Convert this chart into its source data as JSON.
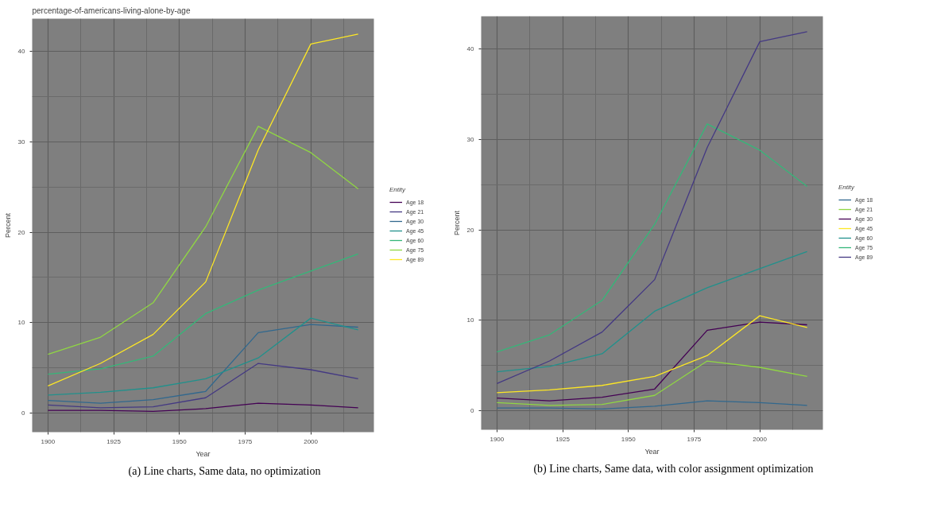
{
  "chart_data": [
    {
      "type": "line",
      "title": "percentage-of-americans-living-alone-by-age",
      "xlabel": "Year",
      "ylabel": "Percent",
      "legend_title": "Entity",
      "legend": "right",
      "grid": true,
      "annotations": [
        "(a) Line charts, Same data, no optimization"
      ],
      "x": [
        1900,
        1920,
        1940,
        1960,
        1980,
        2000,
        2018
      ],
      "xlim": [
        1894,
        2024
      ],
      "xticks": [
        1900,
        1925,
        1950,
        1975,
        2000
      ],
      "ylim": [
        -2.1,
        43.6
      ],
      "yticks": [
        0,
        10,
        20,
        30,
        40
      ],
      "series": [
        {
          "name": "Age 18",
          "color": "#440154",
          "values": [
            0.3,
            0.3,
            0.2,
            0.5,
            1.1,
            0.9,
            0.6
          ]
        },
        {
          "name": "Age 21",
          "color": "#443983",
          "values": [
            0.9,
            0.6,
            0.7,
            1.7,
            5.5,
            4.8,
            3.8
          ]
        },
        {
          "name": "Age 30",
          "color": "#31688e",
          "values": [
            1.4,
            1.1,
            1.5,
            2.4,
            8.9,
            9.8,
            9.5
          ]
        },
        {
          "name": "Age 45",
          "color": "#21918c",
          "values": [
            2.0,
            2.3,
            2.8,
            3.8,
            6.1,
            10.5,
            9.2
          ]
        },
        {
          "name": "Age 60",
          "color": "#35b779",
          "values": [
            4.3,
            4.9,
            6.3,
            11.0,
            13.6,
            15.7,
            17.6
          ]
        },
        {
          "name": "Age 75",
          "color": "#90d743",
          "values": [
            6.5,
            8.4,
            12.2,
            20.6,
            31.7,
            28.8,
            24.8
          ]
        },
        {
          "name": "Age 89",
          "color": "#fde725",
          "values": [
            3.0,
            5.5,
            8.7,
            14.5,
            29.1,
            40.8,
            41.9
          ]
        }
      ]
    },
    {
      "type": "line",
      "xlabel": "Year",
      "ylabel": "Percent",
      "legend_title": "Entity",
      "legend": "right",
      "grid": true,
      "annotations": [
        "(b) Line charts, Same data, with color assignment optimization"
      ],
      "x": [
        1900,
        1920,
        1940,
        1960,
        1980,
        2000,
        2018
      ],
      "xlim": [
        1894,
        2024
      ],
      "xticks": [
        1900,
        1925,
        1950,
        1975,
        2000
      ],
      "ylim": [
        -2.1,
        43.6
      ],
      "yticks": [
        0,
        10,
        20,
        30,
        40
      ],
      "series": [
        {
          "name": "Age 18",
          "color": "#31688e",
          "values": [
            0.3,
            0.3,
            0.2,
            0.5,
            1.1,
            0.9,
            0.6
          ]
        },
        {
          "name": "Age 21",
          "color": "#90d743",
          "values": [
            0.9,
            0.6,
            0.7,
            1.7,
            5.5,
            4.8,
            3.8
          ]
        },
        {
          "name": "Age 30",
          "color": "#440154",
          "values": [
            1.4,
            1.1,
            1.5,
            2.4,
            8.9,
            9.8,
            9.5
          ]
        },
        {
          "name": "Age 45",
          "color": "#fde725",
          "values": [
            2.0,
            2.3,
            2.8,
            3.8,
            6.1,
            10.5,
            9.2
          ]
        },
        {
          "name": "Age 60",
          "color": "#21918c",
          "values": [
            4.3,
            4.9,
            6.3,
            11.0,
            13.6,
            15.7,
            17.6
          ]
        },
        {
          "name": "Age 75",
          "color": "#35b779",
          "values": [
            6.5,
            8.4,
            12.2,
            20.6,
            31.7,
            28.8,
            24.8
          ]
        },
        {
          "name": "Age 89",
          "color": "#443983",
          "values": [
            3.0,
            5.5,
            8.7,
            14.5,
            29.1,
            40.8,
            41.9
          ]
        }
      ]
    }
  ]
}
